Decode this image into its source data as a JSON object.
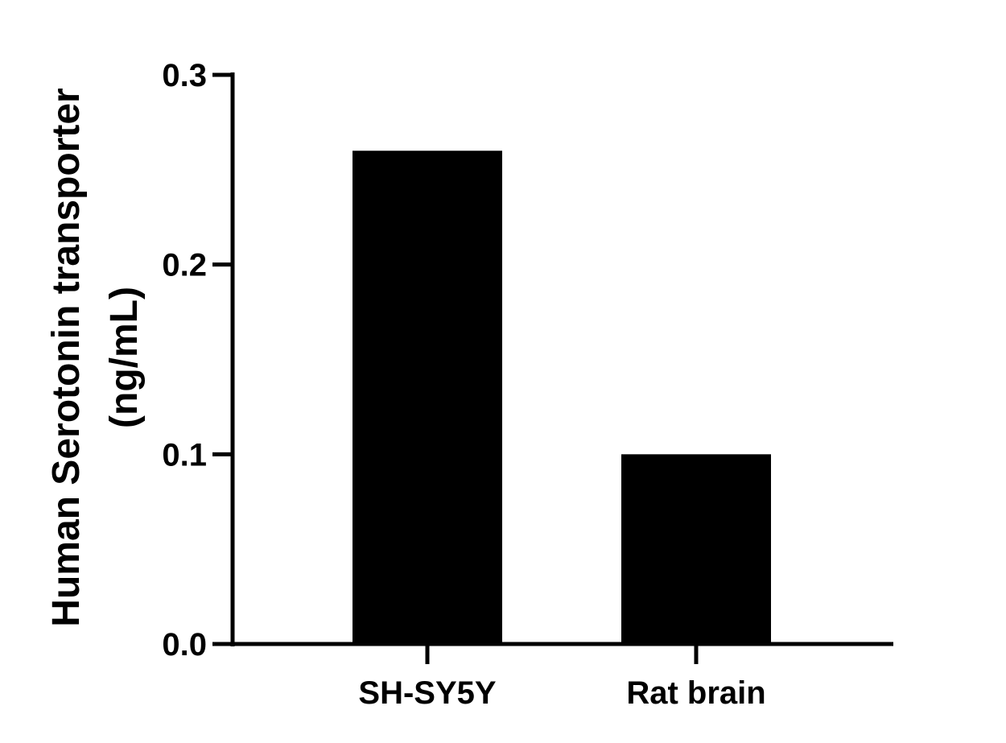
{
  "chart_data": {
    "type": "bar",
    "categories": [
      "SH-SY5Y",
      "Rat brain"
    ],
    "values": [
      0.26,
      0.1
    ],
    "title": "",
    "xlabel": "",
    "ylabel_lines": [
      "Human Serotonin transporter",
      "(ng/mL)"
    ],
    "ylim": [
      0,
      0.3
    ],
    "yticks": [
      "0.0",
      "0.1",
      "0.2",
      "0.3"
    ],
    "grid": false,
    "legend": "none",
    "bar_color": "#000000",
    "axis_color": "#000000"
  }
}
